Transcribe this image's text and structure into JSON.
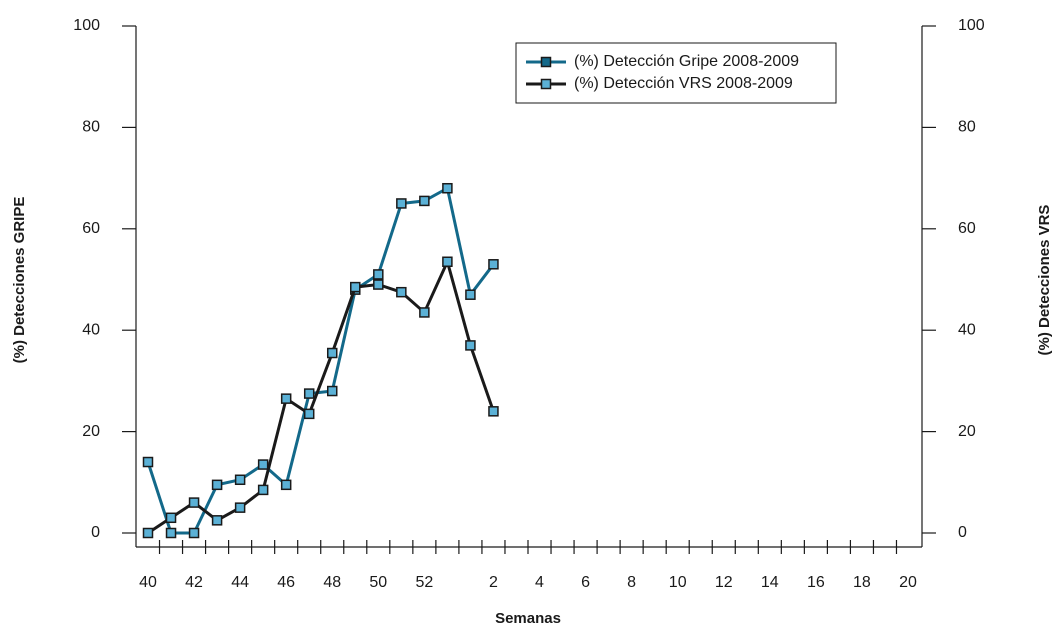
{
  "chart_data": {
    "type": "line",
    "x_label": "Semanas",
    "y_label": "(%) Detecciones GRIPE",
    "y2_label": "(%) Detecciones VRS",
    "categories": [
      "40",
      null,
      "42",
      null,
      "44",
      null,
      "46",
      null,
      "48",
      null,
      "50",
      null,
      "52",
      null,
      null,
      "2",
      null,
      "4",
      null,
      "6",
      null,
      "8",
      null,
      "10",
      null,
      "12",
      null,
      "14",
      null,
      "16",
      null,
      "18",
      null,
      "20"
    ],
    "ylim": [
      0,
      100
    ],
    "yticks": [
      0,
      20,
      40,
      60,
      80,
      100
    ],
    "y2lim": [
      0,
      100
    ],
    "y2ticks": [
      0,
      20,
      40,
      60,
      80,
      100
    ],
    "marker_color": "#5bb1d6",
    "legend": "top-right",
    "series": [
      {
        "name": "(%) Detección Gripe 2008-2009",
        "color": "#13698a",
        "values": [
          14,
          0,
          0,
          9.5,
          10.5,
          13.5,
          9.5,
          27.5,
          28,
          48,
          51,
          65,
          65.5,
          68,
          47,
          53,
          null,
          null,
          null,
          null,
          null,
          null,
          null,
          null,
          null,
          null,
          null,
          null,
          null,
          null,
          null,
          null,
          null,
          null
        ]
      },
      {
        "name": "(%) Detección VRS 2008-2009",
        "color": "#1a1a1a",
        "axis": "y2",
        "values": [
          0,
          3,
          6,
          2.5,
          5,
          8.5,
          26.5,
          23.5,
          35.5,
          48.5,
          49,
          47.5,
          43.5,
          53.5,
          37,
          24,
          null,
          null,
          null,
          null,
          null,
          null,
          null,
          null,
          null,
          null,
          null,
          null,
          null,
          null,
          null,
          null,
          null,
          null
        ]
      }
    ]
  }
}
